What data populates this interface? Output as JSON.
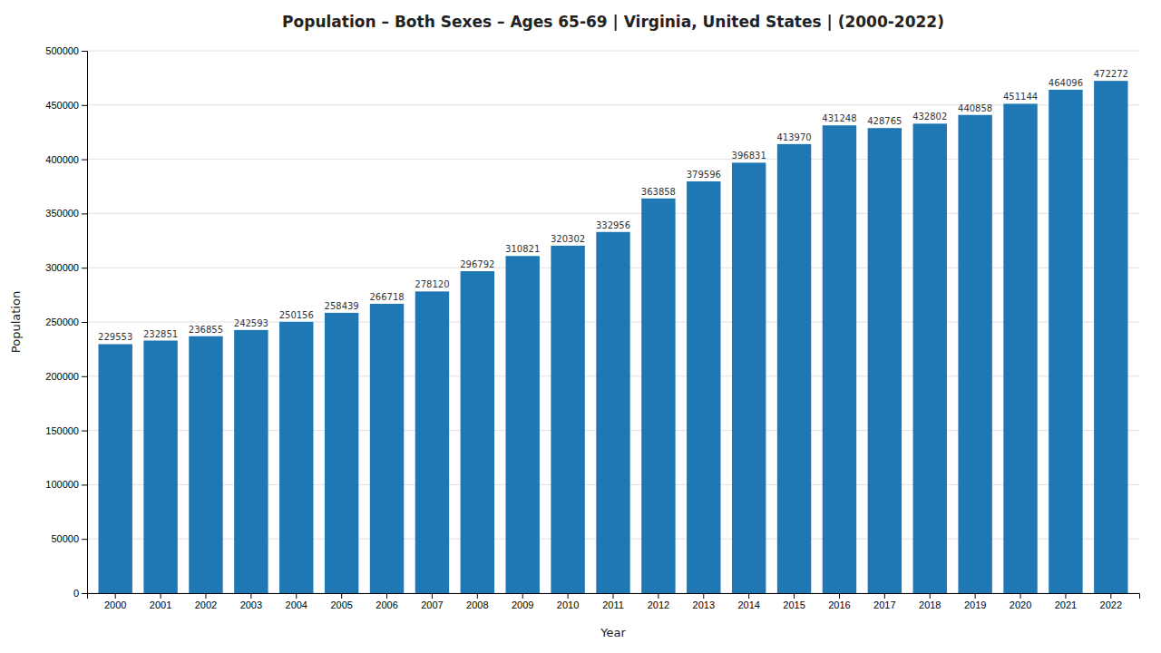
{
  "chart_data": {
    "type": "bar",
    "title": "Population – Both Sexes – Ages 65-69 | Virginia, United States |  (2000-2022)",
    "x_label": "Year",
    "y_label": "Population",
    "categories": [
      "2000",
      "2001",
      "2002",
      "2003",
      "2004",
      "2005",
      "2006",
      "2007",
      "2008",
      "2009",
      "2010",
      "2011",
      "2012",
      "2013",
      "2014",
      "2015",
      "2016",
      "2017",
      "2018",
      "2019",
      "2020",
      "2021",
      "2022"
    ],
    "values": [
      229553,
      232851,
      236855,
      242593,
      250156,
      258439,
      266718,
      278120,
      296792,
      310821,
      320302,
      332956,
      363858,
      379596,
      396831,
      413970,
      431248,
      428765,
      432802,
      440858,
      451144,
      464096,
      472272
    ],
    "ylim": [
      0,
      500000
    ],
    "yticks": [
      0,
      50000,
      100000,
      150000,
      200000,
      250000,
      300000,
      350000,
      400000,
      450000,
      500000
    ],
    "grid": true,
    "data_labels": true
  }
}
